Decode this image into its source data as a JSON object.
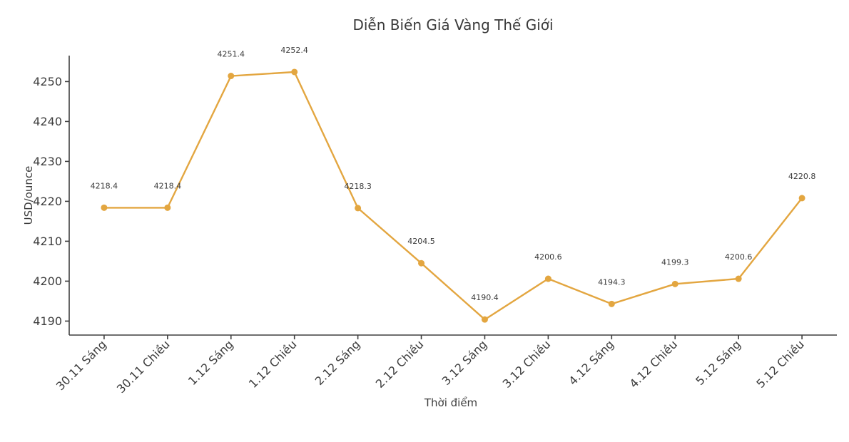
{
  "chart_data": {
    "type": "line",
    "title": "Diễn Biến Giá Vàng Thế Giới",
    "xlabel": "Thời điểm",
    "ylabel": "USD/ounce",
    "categories": [
      "30.11 Sáng",
      "30.11 Chiều",
      "1.12 Sáng",
      "1.12 Chiều",
      "2.12 Sáng",
      "2.12 Chiều",
      "3.12 Sáng",
      "3.12 Chiều",
      "4.12 Sáng",
      "4.12 Chiều",
      "5.12 Sáng",
      "5.12 Chiều"
    ],
    "values": [
      4218.4,
      4218.4,
      4251.4,
      4252.4,
      4218.3,
      4204.5,
      4190.4,
      4200.6,
      4194.3,
      4199.3,
      4200.6,
      4220.8
    ],
    "point_labels": [
      "4218.4",
      "4218.4",
      "4251.4",
      "4252.4",
      "4218.3",
      "4204.5",
      "4190.4",
      "4200.6",
      "4194.3",
      "4199.3",
      "4200.6",
      "4220.8"
    ],
    "yticks": [
      4190,
      4200,
      4210,
      4220,
      4230,
      4240,
      4250
    ],
    "ylim": [
      4186.5,
      4256.5
    ],
    "grid": false,
    "legend": "none",
    "line_color": "#E3A640",
    "marker": "circle",
    "marker_color": "#E3A640",
    "axis_color": "#3f3f3f",
    "text_color": "#3c3c3c",
    "background_color": "#ffffff"
  }
}
